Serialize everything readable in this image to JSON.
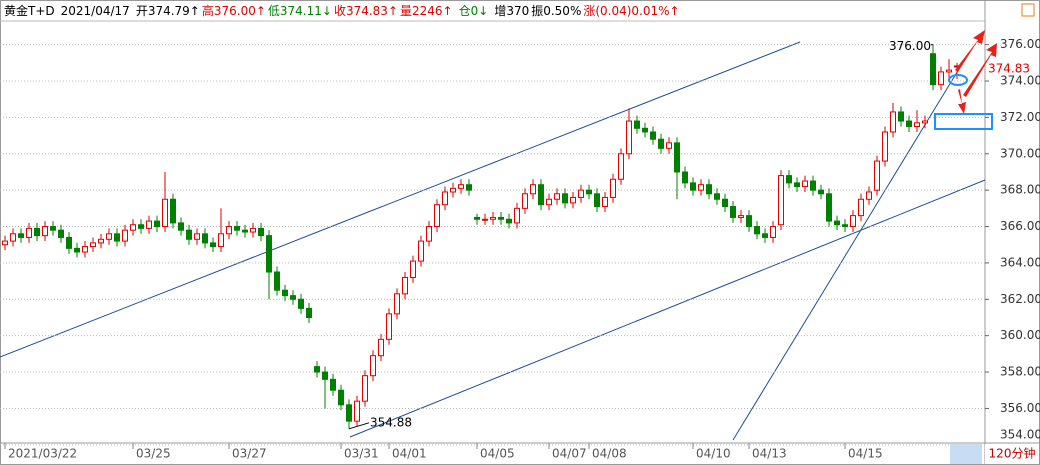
{
  "chart_data": {
    "type": "candlestick",
    "title": "黄金T+D",
    "date": "2021/04/17",
    "stats": [
      {
        "text": "开374.79↑",
        "color": "#000000"
      },
      {
        "text": "高376.00↑",
        "color": "#e00000"
      },
      {
        "text": "低374.11↓",
        "color": "#008000"
      },
      {
        "text": "收374.83↑",
        "color": "#e00000"
      },
      {
        "text": "量2246↑",
        "color": "#e00000"
      },
      {
        "text": "仓0↓",
        "color": "#008000"
      },
      {
        "text": "增370",
        "color": "#000000"
      },
      {
        "text": "振0.50%",
        "color": "#000000"
      },
      {
        "text": "涨(0.04)0.01%↑",
        "color": "#e00000"
      }
    ],
    "period": "120分钟",
    "up_color": "#e00000",
    "down_color": "#008000",
    "ylim": [
      354.1,
      377.3
    ],
    "yticks": [
      {
        "value": 354,
        "label": "354.00"
      },
      {
        "value": 356,
        "label": "356.00"
      },
      {
        "value": 358,
        "label": "358.00"
      },
      {
        "value": 360,
        "label": "360.00"
      },
      {
        "value": 362,
        "label": "362.00"
      },
      {
        "value": 364,
        "label": "364.00"
      },
      {
        "value": 366,
        "label": "366.00"
      },
      {
        "value": 368,
        "label": "368.00"
      },
      {
        "value": 370,
        "label": "370.00"
      },
      {
        "value": 372,
        "label": "372.00"
      },
      {
        "value": 374,
        "label": "374.00"
      },
      {
        "value": 376,
        "label": "376.00"
      }
    ],
    "grid": true,
    "last": 374.83,
    "annotations": [
      {
        "value": 376.0,
        "label": "376.00"
      },
      {
        "value": 354.88,
        "label": "354.88"
      }
    ],
    "categories": [
      "2021/03/22",
      null,
      null,
      null,
      null,
      null,
      null,
      null,
      null,
      null,
      null,
      null,
      null,
      null,
      null,
      null,
      "03/25",
      null,
      null,
      null,
      null,
      null,
      null,
      null,
      null,
      null,
      null,
      null,
      "03/27",
      null,
      null,
      null,
      null,
      null,
      null,
      null,
      null,
      null,
      null,
      null,
      null,
      null,
      "03/31",
      null,
      null,
      null,
      null,
      null,
      "04/01",
      null,
      null,
      null,
      null,
      null,
      null,
      null,
      null,
      null,
      null,
      "04/05",
      null,
      null,
      null,
      null,
      null,
      null,
      null,
      null,
      "04/07",
      null,
      null,
      null,
      null,
      "04/08",
      null,
      null,
      null,
      null,
      null,
      null,
      null,
      null,
      null,
      null,
      null,
      null,
      "04/10",
      null,
      null,
      null,
      null,
      null,
      null,
      "04/13",
      null,
      null,
      null,
      null,
      null,
      null,
      null,
      null,
      null,
      null,
      null,
      "04/15",
      null,
      null,
      null,
      null,
      null,
      null,
      null,
      null,
      null,
      null,
      null,
      null,
      null,
      null
    ],
    "open": [
      365.0,
      365.2,
      365.6,
      365.4,
      365.9,
      365.5,
      366.0,
      365.8,
      365.4,
      364.8,
      364.6,
      364.9,
      365.1,
      365.3,
      365.6,
      365.2,
      365.8,
      366.1,
      365.9,
      366.3,
      366.0,
      367.5,
      366.2,
      365.8,
      365.3,
      365.6,
      365.1,
      364.9,
      365.6,
      366.0,
      365.8,
      365.7,
      365.9,
      365.5,
      363.5,
      362.5,
      362.2,
      362.0,
      361.5,
      358.3,
      358.0,
      357.6,
      357.0,
      356.2,
      355.3,
      356.4,
      357.8,
      358.9,
      359.8,
      361.2,
      362.3,
      363.2,
      364.1,
      365.2,
      366.0,
      367.2,
      367.9,
      368.1,
      368.3,
      366.5,
      366.4,
      366.4,
      366.5,
      366.4,
      366.2,
      367.0,
      367.8,
      368.3,
      367.2,
      367.5,
      367.8,
      367.3,
      367.6,
      368.0,
      367.8,
      367.1,
      367.6,
      368.6,
      370.0,
      371.8,
      371.4,
      371.2,
      370.8,
      370.3,
      370.6,
      369.0,
      368.4,
      368.0,
      368.3,
      367.8,
      367.5,
      367.1,
      366.5,
      366.6,
      366.0,
      365.6,
      365.4,
      366.1,
      368.8,
      368.4,
      368.2,
      368.5,
      368.0,
      367.8,
      366.3,
      366.1,
      366.0,
      366.6,
      367.5,
      368.0,
      369.6,
      371.2,
      372.3,
      371.8,
      371.5,
      371.7,
      375.5,
      373.8,
      374.5,
      374.79
    ],
    "high": [
      365.5,
      365.9,
      365.9,
      366.2,
      366.2,
      366.3,
      366.3,
      366.1,
      365.7,
      365.1,
      365.2,
      365.4,
      365.6,
      365.9,
      365.9,
      366.1,
      366.4,
      366.4,
      366.6,
      366.6,
      369.0,
      367.8,
      366.5,
      366.1,
      365.9,
      365.9,
      365.4,
      367.0,
      366.3,
      366.3,
      366.1,
      366.2,
      366.2,
      365.8,
      363.8,
      362.8,
      362.5,
      362.3,
      361.8,
      358.6,
      358.3,
      357.9,
      357.3,
      356.5,
      356.7,
      358.1,
      359.2,
      360.1,
      361.5,
      362.6,
      363.5,
      364.4,
      365.5,
      366.3,
      367.5,
      368.2,
      368.4,
      368.6,
      368.6,
      366.7,
      366.7,
      366.8,
      366.8,
      366.7,
      367.3,
      368.1,
      368.6,
      368.6,
      367.8,
      368.1,
      368.1,
      367.9,
      368.3,
      368.3,
      368.1,
      367.9,
      368.9,
      370.3,
      372.5,
      372.1,
      371.7,
      371.5,
      371.1,
      370.9,
      370.9,
      369.3,
      368.7,
      368.6,
      368.6,
      368.1,
      367.8,
      367.4,
      366.9,
      366.9,
      366.3,
      365.9,
      366.3,
      369.1,
      369.1,
      368.7,
      368.8,
      368.8,
      368.3,
      368.1,
      366.6,
      366.4,
      366.9,
      367.8,
      368.2,
      369.9,
      371.5,
      372.8,
      372.6,
      372.1,
      372.4,
      372.1,
      376.0,
      374.8,
      375.2,
      375.0
    ],
    "low": [
      364.7,
      364.9,
      365.1,
      365.1,
      365.2,
      365.2,
      365.5,
      365.1,
      364.5,
      364.3,
      364.3,
      364.6,
      364.8,
      365.0,
      364.9,
      364.9,
      365.5,
      365.6,
      365.6,
      365.7,
      365.7,
      365.9,
      365.5,
      365.0,
      365.0,
      364.8,
      364.6,
      364.6,
      365.3,
      365.5,
      365.4,
      365.4,
      365.2,
      362.0,
      362.2,
      361.9,
      361.7,
      361.2,
      360.7,
      357.7,
      356.0,
      356.7,
      355.9,
      354.88,
      355.0,
      356.1,
      357.5,
      358.6,
      359.5,
      360.9,
      362.0,
      362.9,
      363.8,
      364.9,
      365.7,
      366.9,
      367.6,
      367.8,
      367.7,
      366.1,
      366.1,
      366.1,
      366.1,
      365.9,
      365.9,
      366.7,
      367.5,
      366.9,
      366.9,
      367.2,
      367.0,
      367.0,
      367.3,
      367.5,
      366.8,
      366.8,
      367.3,
      368.3,
      369.7,
      371.1,
      370.9,
      370.5,
      370.0,
      370.0,
      367.5,
      368.1,
      367.7,
      367.7,
      367.5,
      367.2,
      366.8,
      366.2,
      366.2,
      365.7,
      365.3,
      365.1,
      365.1,
      365.8,
      368.1,
      367.9,
      367.9,
      367.7,
      367.5,
      366.0,
      365.8,
      365.7,
      365.7,
      366.3,
      367.2,
      367.7,
      369.3,
      370.9,
      371.5,
      371.2,
      371.2,
      371.4,
      373.5,
      373.5,
      374.2,
      374.11
    ],
    "close": [
      365.2,
      365.6,
      365.4,
      365.9,
      365.5,
      366.0,
      365.8,
      365.4,
      364.8,
      364.6,
      364.9,
      365.1,
      365.3,
      365.6,
      365.2,
      365.8,
      366.1,
      365.9,
      366.3,
      366.0,
      367.5,
      366.2,
      365.8,
      365.3,
      365.6,
      365.1,
      364.9,
      365.6,
      366.0,
      365.8,
      365.7,
      365.9,
      365.5,
      363.5,
      362.5,
      362.2,
      362.0,
      361.5,
      361.0,
      358.0,
      357.6,
      357.0,
      356.2,
      355.3,
      356.4,
      357.8,
      358.9,
      359.8,
      361.2,
      362.3,
      363.2,
      364.1,
      365.2,
      366.0,
      367.2,
      367.9,
      368.1,
      368.3,
      368.0,
      366.4,
      366.4,
      366.5,
      366.4,
      366.2,
      367.0,
      367.8,
      368.3,
      367.2,
      367.5,
      367.8,
      367.3,
      367.6,
      368.0,
      367.8,
      367.1,
      367.6,
      368.6,
      370.0,
      371.8,
      371.4,
      371.2,
      370.8,
      370.3,
      370.6,
      369.0,
      368.4,
      368.0,
      368.3,
      367.8,
      367.5,
      367.1,
      366.5,
      366.6,
      366.0,
      365.6,
      365.4,
      366.0,
      368.8,
      368.4,
      368.2,
      368.5,
      368.0,
      367.8,
      366.3,
      366.1,
      366.0,
      366.6,
      367.5,
      367.9,
      369.6,
      371.2,
      372.3,
      371.8,
      371.5,
      371.7,
      371.8,
      373.8,
      374.5,
      374.6,
      374.83
    ]
  }
}
